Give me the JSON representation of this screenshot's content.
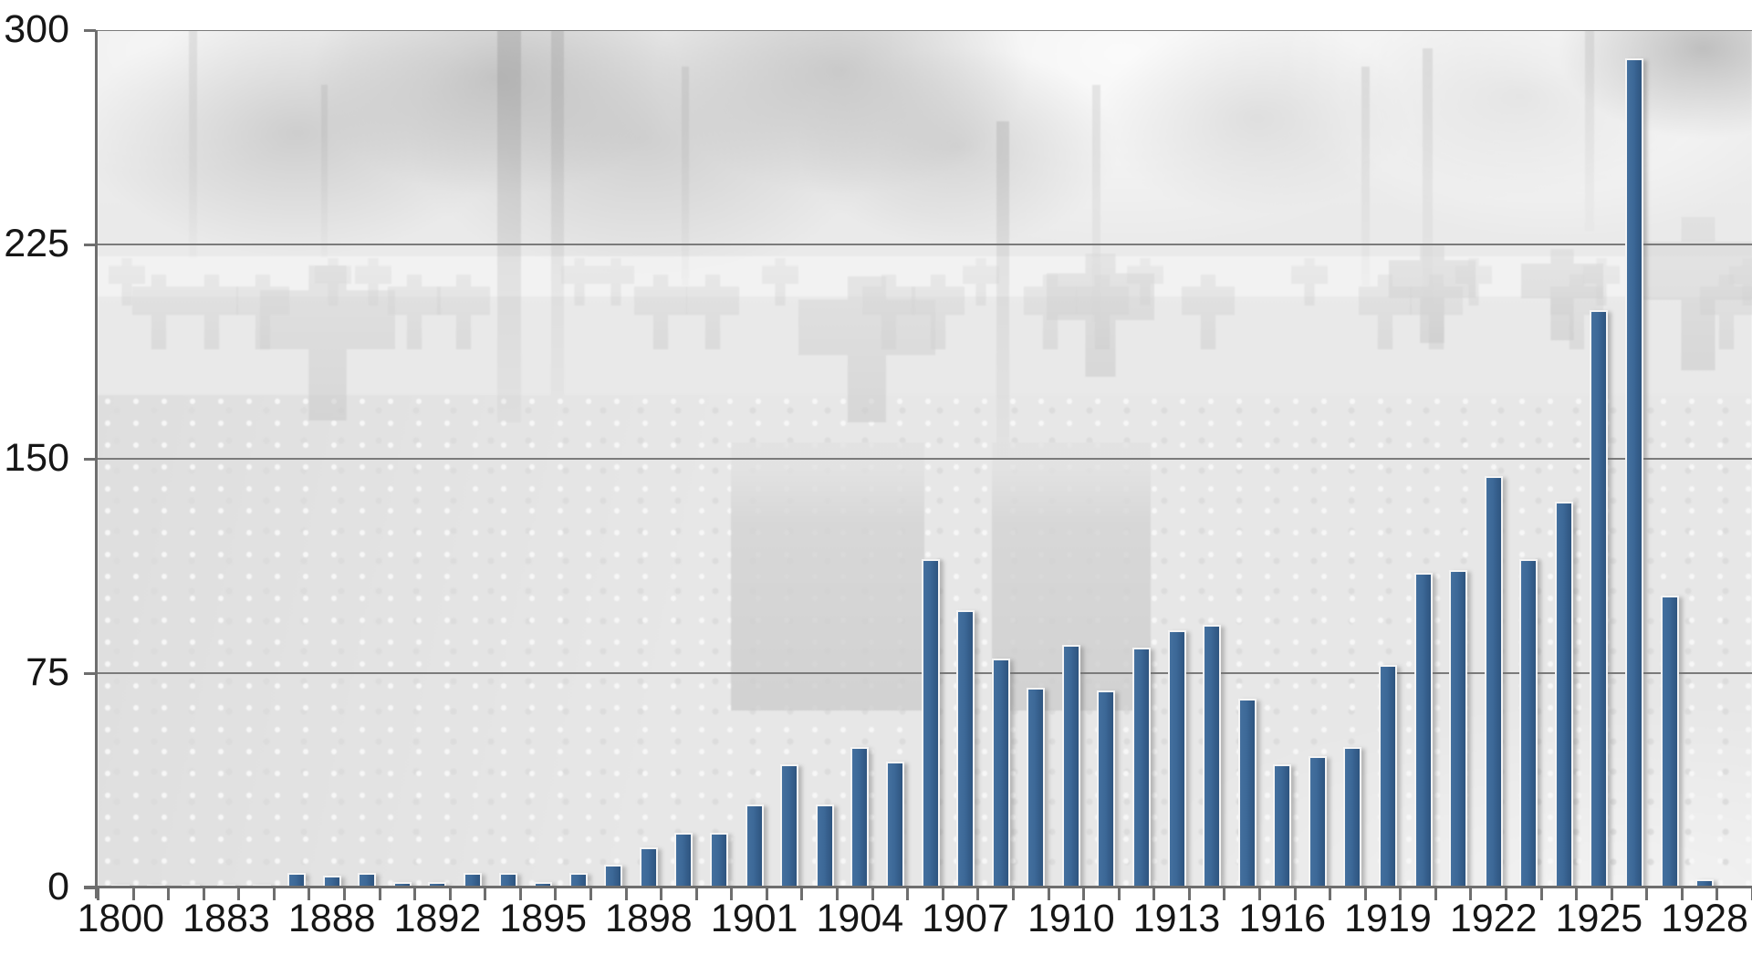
{
  "chart_data": {
    "type": "bar",
    "title": "",
    "xlabel": "",
    "ylabel": "",
    "y_axis": {
      "min": 0,
      "max": 300,
      "tick_interval": 75,
      "ticks": [
        0,
        75,
        150,
        225,
        300
      ]
    },
    "x_axis": {
      "label_interval": 3,
      "visible_labels": [
        "1800",
        "1883",
        "1888",
        "1892",
        "1895",
        "1898",
        "1901",
        "1904",
        "1907",
        "1910",
        "1913",
        "1916",
        "1919",
        "1922",
        "1925",
        "1928"
      ]
    },
    "grid": "horizontal",
    "legend": null,
    "background_image_description": "faded-war-cemetery-photo-with-cross-gravestones",
    "colors": {
      "bar": "#3a6496",
      "bar_outline": "#f4f4f4",
      "gridline": "#7b7b7b",
      "axis": "#6e6e6e",
      "label_text": "#161616"
    },
    "bars": [
      {
        "label": "1800",
        "value": 1
      },
      {
        "label": "",
        "value": 1
      },
      {
        "label": "",
        "value": 1
      },
      {
        "label": "1883",
        "value": 1
      },
      {
        "label": "",
        "value": 1
      },
      {
        "label": "",
        "value": 5
      },
      {
        "label": "1888",
        "value": 4
      },
      {
        "label": "",
        "value": 5
      },
      {
        "label": "",
        "value": 2
      },
      {
        "label": "1892",
        "value": 2
      },
      {
        "label": "",
        "value": 5
      },
      {
        "label": "",
        "value": 5
      },
      {
        "label": "1895",
        "value": 2
      },
      {
        "label": "",
        "value": 5
      },
      {
        "label": "",
        "value": 8
      },
      {
        "label": "1898",
        "value": 14
      },
      {
        "label": "",
        "value": 19
      },
      {
        "label": "",
        "value": 19
      },
      {
        "label": "1901",
        "value": 29
      },
      {
        "label": "",
        "value": 43
      },
      {
        "label": "",
        "value": 29
      },
      {
        "label": "1904",
        "value": 49
      },
      {
        "label": "",
        "value": 44
      },
      {
        "label": "",
        "value": 115
      },
      {
        "label": "1907",
        "value": 97
      },
      {
        "label": "",
        "value": 80
      },
      {
        "label": "",
        "value": 70
      },
      {
        "label": "1910",
        "value": 85
      },
      {
        "label": "",
        "value": 69
      },
      {
        "label": "",
        "value": 84
      },
      {
        "label": "1913",
        "value": 90
      },
      {
        "label": "",
        "value": 92
      },
      {
        "label": "",
        "value": 66
      },
      {
        "label": "1916",
        "value": 43
      },
      {
        "label": "",
        "value": 46
      },
      {
        "label": "",
        "value": 49
      },
      {
        "label": "1919",
        "value": 78
      },
      {
        "label": "",
        "value": 110
      },
      {
        "label": "",
        "value": 111
      },
      {
        "label": "1922",
        "value": 144
      },
      {
        "label": "",
        "value": 115
      },
      {
        "label": "",
        "value": 135
      },
      {
        "label": "1925",
        "value": 202
      },
      {
        "label": "",
        "value": 290
      },
      {
        "label": "",
        "value": 102
      },
      {
        "label": "1928",
        "value": 3
      },
      {
        "label": "",
        "value": 0
      }
    ]
  }
}
